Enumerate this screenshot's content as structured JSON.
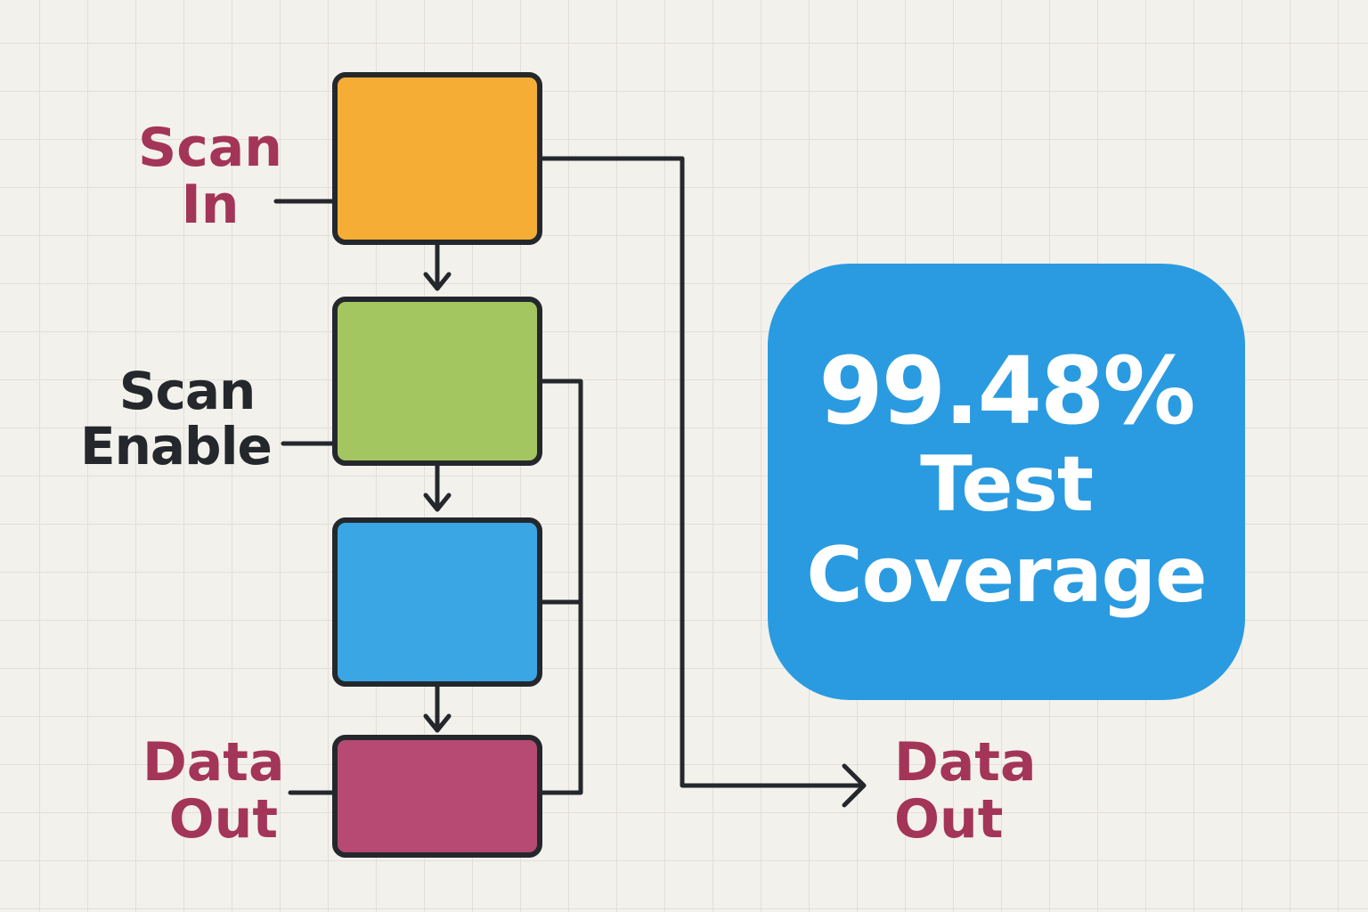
{
  "diagram": {
    "labels": {
      "scan_in": [
        "Scan",
        "In"
      ],
      "scan_enable": [
        "Scan",
        "Enable"
      ],
      "data_out_left": [
        "Data",
        "Out"
      ],
      "data_out_right": [
        "Data",
        "Out"
      ]
    },
    "blocks": [
      {
        "name": "orange"
      },
      {
        "name": "green"
      },
      {
        "name": "blue"
      },
      {
        "name": "magenta"
      }
    ],
    "colors": {
      "block1": "#f5ad35",
      "block2": "#a4c661",
      "block3": "#3aa6e4",
      "block4": "#b64a72",
      "stroke": "#24282c",
      "label_accent": "#a33558",
      "label_dark": "#24282c",
      "badge": "#2a9be0",
      "badge_text": "#ffffff",
      "background": "#f3f1ec"
    }
  },
  "coverage": {
    "value": "99.48%",
    "line1": "Test",
    "line2": "Coverage"
  }
}
